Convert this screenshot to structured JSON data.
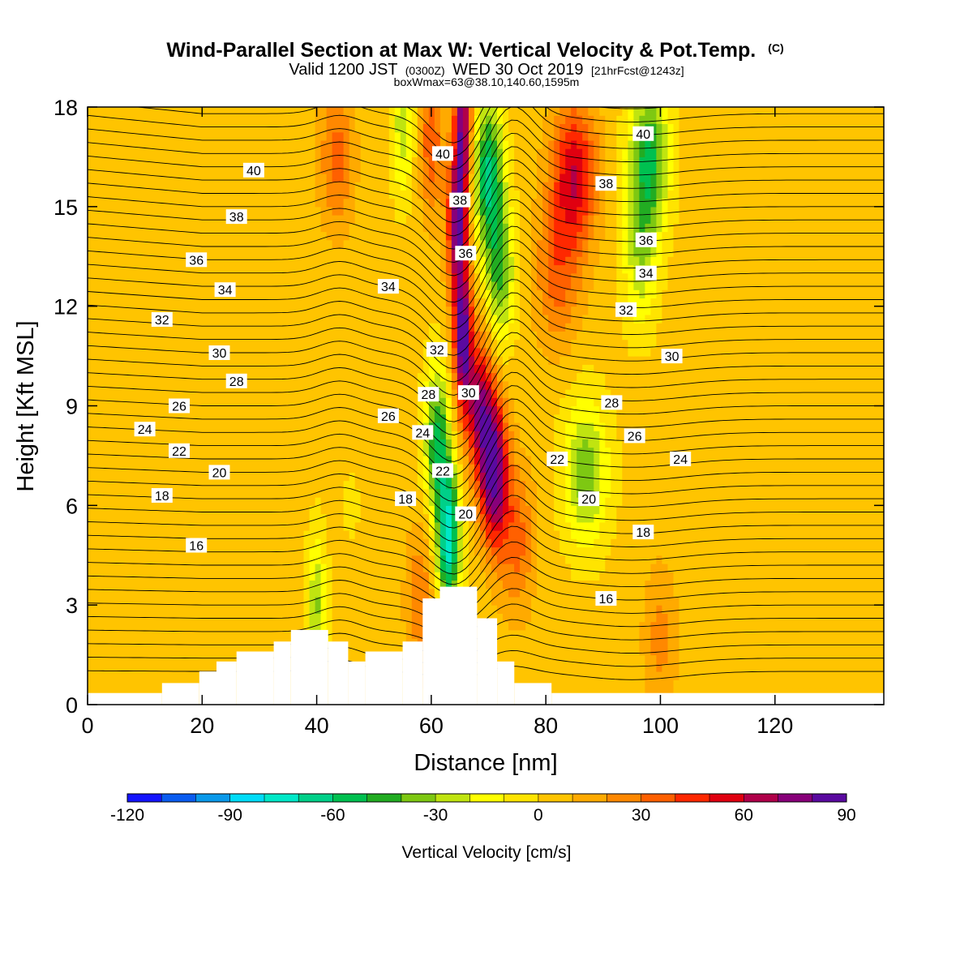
{
  "chart_data": {
    "type": "heatmap",
    "title": "Wind-Parallel Section at Max W: Vertical Velocity & Pot.Temp.",
    "title_mark": "(C)",
    "subtitle_line1_parts": [
      "Valid 1200 JST",
      "(0300Z)",
      "WED 30 Oct 2019",
      "[21hrFcst@1243z]"
    ],
    "subtitle_line2": "boxWmax=63@38.10,140.60,1595m",
    "xlabel": "Distance [nm]",
    "ylabel": "Height [Kft MSL]",
    "xlim": [
      0,
      139
    ],
    "ylim": [
      0,
      18
    ],
    "xticks": [
      0,
      20,
      40,
      60,
      80,
      100,
      120
    ],
    "yticks": [
      0,
      3,
      6,
      9,
      12,
      15,
      18
    ],
    "colorbar": {
      "label": "Vertical Velocity [cm/s]",
      "range": [
        -120,
        90
      ],
      "step": 10,
      "tick_values": [
        -120,
        -90,
        -60,
        -30,
        0,
        30,
        60,
        90
      ],
      "colors": [
        "#1414ff",
        "#0a5cf0",
        "#0a99ea",
        "#00dcf8",
        "#00e8c8",
        "#00d089",
        "#00c050",
        "#22ac22",
        "#7ec812",
        "#c0e410",
        "#ffff00",
        "#ffe400",
        "#ffc400",
        "#ffaa00",
        "#ff8800",
        "#ff6000",
        "#ff2800",
        "#e00010",
        "#b0004a",
        "#88007a",
        "#5a0aa0"
      ]
    },
    "velocity_features": [
      {
        "x": 65.5,
        "y": 11.0,
        "value": 80,
        "width": 1.6
      },
      {
        "x": 64.5,
        "y": 14.5,
        "value": 70,
        "width": 1.8
      },
      {
        "x": 71.0,
        "y": 7.0,
        "value": 80,
        "width": 2.4
      },
      {
        "x": 65.5,
        "y": 17.5,
        "value": 70,
        "width": 1.5
      },
      {
        "x": 68.5,
        "y": 9.0,
        "value": 60,
        "width": 2.4
      },
      {
        "x": 75.0,
        "y": 5.0,
        "value": 30,
        "width": 3.0
      },
      {
        "x": 61.0,
        "y": 8.0,
        "value": -55,
        "width": 2.2
      },
      {
        "x": 63.0,
        "y": 5.0,
        "value": -80,
        "width": 2.0
      },
      {
        "x": 70.0,
        "y": 16.0,
        "value": -65,
        "width": 2.5
      },
      {
        "x": 72.0,
        "y": 13.0,
        "value": -45,
        "width": 2.5
      },
      {
        "x": 87.0,
        "y": 7.0,
        "value": -40,
        "width": 4.0
      },
      {
        "x": 98.0,
        "y": 16.5,
        "value": -55,
        "width": 3.5
      },
      {
        "x": 96.5,
        "y": 13.5,
        "value": -30,
        "width": 3.0
      },
      {
        "x": 40.0,
        "y": 3.0,
        "value": -35,
        "width": 1.6
      },
      {
        "x": 55.0,
        "y": 17.5,
        "value": -30,
        "width": 2.0
      },
      {
        "x": 43.5,
        "y": 16.5,
        "value": 30,
        "width": 3.0
      },
      {
        "x": 60.0,
        "y": 17.0,
        "value": 35,
        "width": 2.0
      },
      {
        "x": 85.0,
        "y": 16.0,
        "value": 55,
        "width": 4.0
      },
      {
        "x": 82.0,
        "y": 13.0,
        "value": 30,
        "width": 4.0
      },
      {
        "x": 58.0,
        "y": 3.2,
        "value": 25,
        "width": 2.5
      },
      {
        "x": 100.0,
        "y": 2.0,
        "value": 20,
        "width": 3.0
      },
      {
        "x": 46.0,
        "y": 6.0,
        "value": -5,
        "width": 3.0
      }
    ],
    "theta_labels": [
      {
        "text": "40",
        "x": 29,
        "y": 16.1
      },
      {
        "text": "38",
        "x": 26,
        "y": 14.7
      },
      {
        "text": "36",
        "x": 19,
        "y": 13.4
      },
      {
        "text": "34",
        "x": 24,
        "y": 12.5
      },
      {
        "text": "32",
        "x": 13,
        "y": 11.6
      },
      {
        "text": "30",
        "x": 23,
        "y": 10.6
      },
      {
        "text": "28",
        "x": 26,
        "y": 9.75
      },
      {
        "text": "26",
        "x": 16,
        "y": 9.0
      },
      {
        "text": "24",
        "x": 10,
        "y": 8.3
      },
      {
        "text": "22",
        "x": 16,
        "y": 7.65
      },
      {
        "text": "20",
        "x": 23,
        "y": 7.0
      },
      {
        "text": "18",
        "x": 13,
        "y": 6.3
      },
      {
        "text": "16",
        "x": 19,
        "y": 4.8
      },
      {
        "text": "34",
        "x": 52.5,
        "y": 12.6
      },
      {
        "text": "26",
        "x": 52.5,
        "y": 8.7
      },
      {
        "text": "18",
        "x": 55.5,
        "y": 6.2
      },
      {
        "text": "40",
        "x": 62,
        "y": 16.6
      },
      {
        "text": "38",
        "x": 65,
        "y": 15.2
      },
      {
        "text": "36",
        "x": 66,
        "y": 13.6
      },
      {
        "text": "32",
        "x": 61,
        "y": 10.7
      },
      {
        "text": "28",
        "x": 59.5,
        "y": 9.35
      },
      {
        "text": "30",
        "x": 66.5,
        "y": 9.4
      },
      {
        "text": "24",
        "x": 58.5,
        "y": 8.2
      },
      {
        "text": "22",
        "x": 62,
        "y": 7.05
      },
      {
        "text": "20",
        "x": 66,
        "y": 5.75
      },
      {
        "text": "22",
        "x": 82,
        "y": 7.4
      },
      {
        "text": "20",
        "x": 87.5,
        "y": 6.2
      },
      {
        "text": "40",
        "x": 97,
        "y": 17.2
      },
      {
        "text": "38",
        "x": 90.5,
        "y": 15.7
      },
      {
        "text": "36",
        "x": 97.5,
        "y": 14.0
      },
      {
        "text": "34",
        "x": 97.5,
        "y": 13.0
      },
      {
        "text": "32",
        "x": 94,
        "y": 11.9
      },
      {
        "text": "30",
        "x": 102,
        "y": 10.5
      },
      {
        "text": "28",
        "x": 91.5,
        "y": 9.1
      },
      {
        "text": "26",
        "x": 95.5,
        "y": 8.1
      },
      {
        "text": "24",
        "x": 103.5,
        "y": 7.4
      },
      {
        "text": "18",
        "x": 97,
        "y": 5.2
      },
      {
        "text": "16",
        "x": 90.5,
        "y": 3.2
      }
    ],
    "terrain": [
      {
        "x0": 0,
        "x1": 13,
        "h": 0.35
      },
      {
        "x0": 13,
        "x1": 19.5,
        "h": 0.65
      },
      {
        "x0": 19.5,
        "x1": 22.5,
        "h": 1.0
      },
      {
        "x0": 22.5,
        "x1": 26,
        "h": 1.3
      },
      {
        "x0": 26,
        "x1": 32.5,
        "h": 1.6
      },
      {
        "x0": 32.5,
        "x1": 35.5,
        "h": 1.9
      },
      {
        "x0": 35.5,
        "x1": 42,
        "h": 2.25
      },
      {
        "x0": 42,
        "x1": 45.5,
        "h": 1.9
      },
      {
        "x0": 45.5,
        "x1": 48.5,
        "h": 1.3
      },
      {
        "x0": 48.5,
        "x1": 55,
        "h": 1.6
      },
      {
        "x0": 55,
        "x1": 58.5,
        "h": 1.9
      },
      {
        "x0": 58.5,
        "x1": 61.5,
        "h": 3.2
      },
      {
        "x0": 61.5,
        "x1": 68,
        "h": 3.55
      },
      {
        "x0": 68,
        "x1": 71.5,
        "h": 2.6
      },
      {
        "x0": 71.5,
        "x1": 74.5,
        "h": 1.3
      },
      {
        "x0": 74.5,
        "x1": 81,
        "h": 0.65
      },
      {
        "x0": 81,
        "x1": 139,
        "h": 0.35
      }
    ]
  }
}
